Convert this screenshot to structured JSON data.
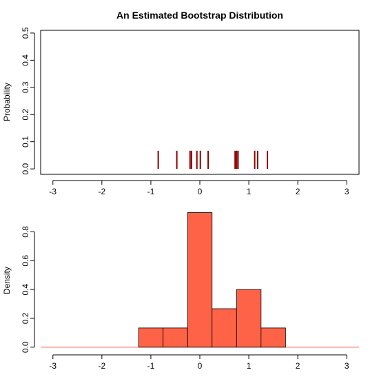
{
  "chart_data": [
    {
      "type": "line",
      "subtype": "spike",
      "title": "An Estimated Bootstrap Distribution",
      "xlabel": "",
      "ylabel": "Probability",
      "xlim": [
        -3.25,
        3.25
      ],
      "ylim": [
        -0.02,
        0.51
      ],
      "x_ticks": [
        -3,
        -2,
        -1,
        0,
        1,
        2,
        3
      ],
      "y_ticks": [
        0.0,
        0.1,
        0.2,
        0.3,
        0.4,
        0.5
      ],
      "x_tick_labels": [
        "-3",
        "-2",
        "-1",
        "0",
        "1",
        "2",
        "3"
      ],
      "y_tick_labels": [
        "0.0",
        "0.1",
        "0.2",
        "0.3",
        "0.4",
        "0.5"
      ],
      "x": [
        -0.85,
        -0.47,
        -0.2,
        -0.17,
        -0.06,
        0.01,
        0.17,
        0.72,
        0.75,
        0.78,
        1.12,
        1.18,
        1.38
      ],
      "y": [
        0.0667,
        0.0667,
        0.0667,
        0.0667,
        0.0667,
        0.0667,
        0.0667,
        0.0667,
        0.0667,
        0.0667,
        0.0667,
        0.0667,
        0.0667
      ],
      "spike_color": "#8b0000",
      "box": true,
      "grid": false
    },
    {
      "type": "bar",
      "subtype": "histogram",
      "title": "",
      "xlabel": "",
      "ylabel": "Density",
      "xlim": [
        -3.25,
        3.25
      ],
      "ylim": [
        -0.02,
        0.95
      ],
      "x_ticks": [
        -3,
        -2,
        -1,
        0,
        1,
        2,
        3
      ],
      "y_ticks": [
        0.0,
        0.2,
        0.4,
        0.6,
        0.8
      ],
      "x_tick_labels": [
        "-3",
        "-2",
        "-1",
        "0",
        "1",
        "2",
        "3"
      ],
      "y_tick_labels": [
        "0.0",
        "0.2",
        "0.4",
        "0.6",
        "0.8"
      ],
      "bin_edges": [
        -1.25,
        -0.75,
        -0.25,
        0.25,
        0.75,
        1.25,
        1.75
      ],
      "values": [
        0.1333,
        0.1333,
        0.9333,
        0.2667,
        0.4,
        0.1333
      ],
      "bar_color": "#ff6347",
      "baseline_color": "#ff6347",
      "box": false,
      "grid": false
    }
  ]
}
